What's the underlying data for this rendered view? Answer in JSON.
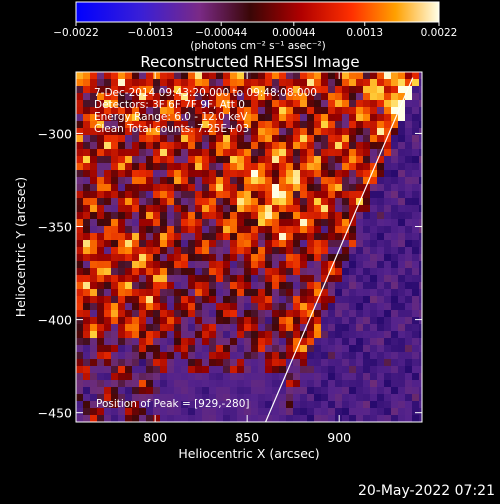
{
  "chart_data": {
    "type": "heatmap",
    "title": "Reconstructed RHESSI Image",
    "xlabel": "Heliocentric X (arcsec)",
    "ylabel": "Heliocentric Y (arcsec)",
    "xlim": [
      757,
      945
    ],
    "ylim": [
      -455,
      -267
    ],
    "x_ticks": [
      800,
      850,
      900
    ],
    "y_ticks": [
      -300,
      -350,
      -400,
      -450
    ],
    "x_tick_labels": [
      "800",
      "850",
      "900"
    ],
    "y_tick_labels": [
      "−300",
      "−350",
      "−400",
      "−450"
    ],
    "colorbar": {
      "ticks": [
        -0.0022,
        -0.0013,
        -0.00044,
        0.00044,
        0.0013,
        0.0022
      ],
      "tick_labels": [
        "−0.0022",
        "−0.0013",
        "−0.00044",
        "0.00044",
        "0.0013",
        "0.0022"
      ],
      "range": [
        -0.0022,
        0.0022
      ],
      "unit_label": "(photons cm⁻² s⁻¹ asec⁻²)"
    },
    "info_lines": [
      "7-Dec-2014 09:43:20.000 to 09:48:08.000",
      "Detectors: 3F 6F 7F 9F, Att 0",
      "Energy Range: 6.0 - 12.0 keV",
      "Clean    Total counts: 7.25E+03"
    ],
    "peak_label": "Position of Peak = [929,-280]",
    "peak": [
      929,
      -280
    ],
    "limb_line": [
      [
        860,
        -455
      ],
      [
        940,
        -270
      ]
    ]
  },
  "footer_timestamp": "20-May-2022 07:21"
}
